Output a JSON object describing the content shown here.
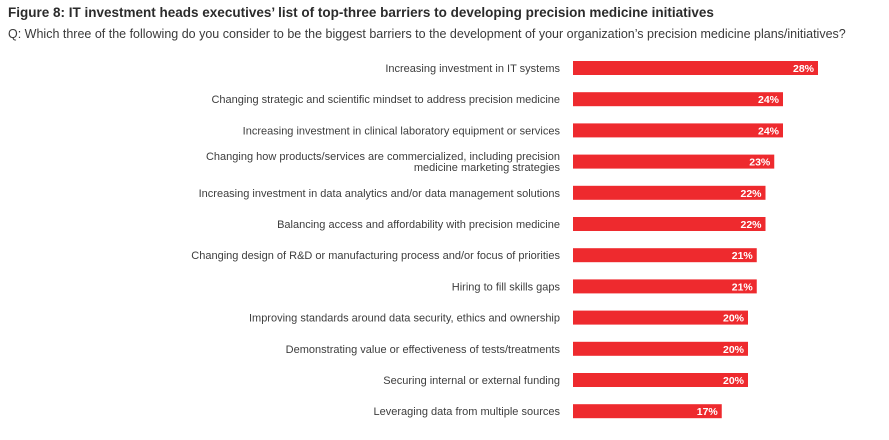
{
  "figure": {
    "title": "Figure 8: IT investment heads executives’ list of top-three barriers to developing precision medicine initiatives",
    "question": "Q: Which three of the following do you consider to be the biggest barriers to the development of your organization’s precision medicine plans/initiatives?"
  },
  "colors": {
    "bar": "#ee2a2e",
    "label_text": "#ffffff"
  },
  "chart_data": {
    "type": "bar",
    "orientation": "horizontal",
    "title": "",
    "xlabel": "",
    "ylabel": "",
    "value_suffix": "%",
    "xlim": [
      0,
      28
    ],
    "grid": false,
    "categories": [
      [
        "Increasing investment in IT systems"
      ],
      [
        "Changing strategic and scientific mindset to address precision medicine"
      ],
      [
        "Increasing investment in clinical laboratory equipment or services"
      ],
      [
        "Changing how products/services are commercialized, including precision",
        "medicine marketing strategies"
      ],
      [
        "Increasing investment in data analytics and/or data management solutions"
      ],
      [
        "Balancing access and affordability with precision medicine"
      ],
      [
        "Changing design of R&D or manufacturing process and/or focus of priorities"
      ],
      [
        "Hiring to fill skills gaps"
      ],
      [
        "Improving standards around data security, ethics and ownership"
      ],
      [
        "Demonstrating value or effectiveness of tests/treatments"
      ],
      [
        "Securing internal or external funding"
      ],
      [
        "Leveraging data from multiple sources"
      ]
    ],
    "values": [
      28,
      24,
      24,
      23,
      22,
      22,
      21,
      21,
      20,
      20,
      20,
      17
    ],
    "labels": [
      "28%",
      "24%",
      "24%",
      "23%",
      "22%",
      "22%",
      "21%",
      "21%",
      "20%",
      "20%",
      "20%",
      "17%"
    ]
  }
}
